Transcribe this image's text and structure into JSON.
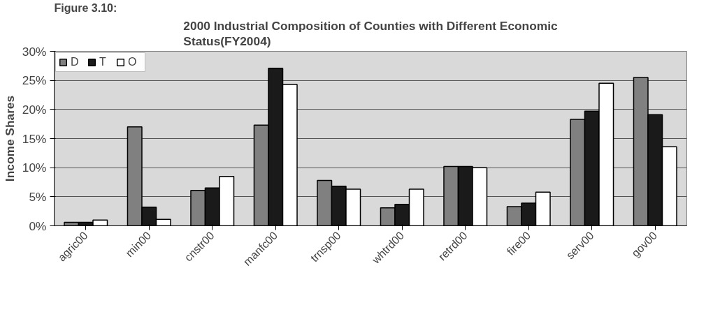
{
  "chart_data": {
    "type": "bar",
    "title": "2000 Industrial Composition of Counties with Different Economic\nStatus(FY2004)",
    "annotations": [
      "Figure 3.10:"
    ],
    "ylabel": "Income Shares",
    "categories": [
      "agric00",
      "min00",
      "cnstr00",
      "manfc00",
      "trnsp00",
      "whtrd00",
      "retrd00",
      "fire00",
      "serv00",
      "gov00"
    ],
    "series": [
      {
        "name": "D",
        "color": "#808080",
        "values": [
          0.6,
          17.0,
          6.1,
          17.3,
          7.8,
          3.1,
          10.2,
          3.3,
          18.3,
          25.5
        ]
      },
      {
        "name": "T",
        "color": "#1a1a1a",
        "values": [
          0.6,
          3.2,
          6.5,
          27.1,
          6.8,
          3.7,
          10.2,
          3.9,
          19.7,
          19.1
        ]
      },
      {
        "name": "O",
        "color": "#ffffff",
        "values": [
          1.0,
          1.1,
          8.5,
          24.3,
          6.3,
          6.3,
          10.0,
          5.8,
          24.5,
          13.6
        ]
      }
    ],
    "ylim": [
      0,
      30
    ],
    "yticks": [
      {
        "value": 0,
        "label": "0%"
      },
      {
        "value": 5,
        "label": "5%"
      },
      {
        "value": 10,
        "label": "10%"
      },
      {
        "value": 15,
        "label": "15%"
      },
      {
        "value": 20,
        "label": "20%"
      },
      {
        "value": 25,
        "label": "25%"
      },
      {
        "value": 30,
        "label": "30%"
      }
    ],
    "grid": "y",
    "legend": "top left"
  }
}
